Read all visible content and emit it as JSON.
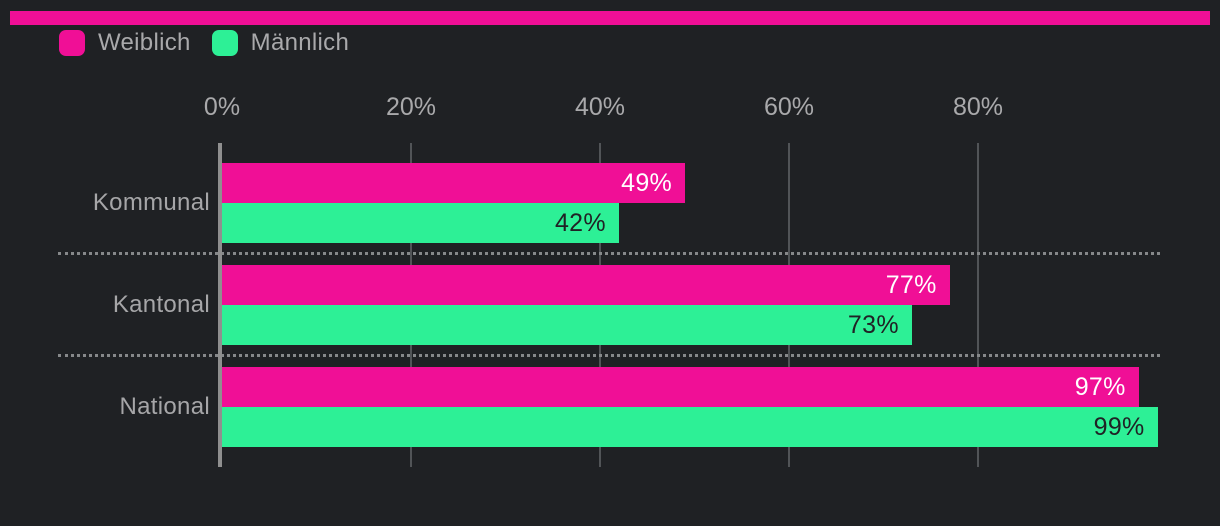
{
  "page": {
    "background": "#1f2124",
    "accent_color": "#f00f96",
    "text_color": "#a9a9ab"
  },
  "legend": {
    "items": [
      {
        "label": "Weiblich",
        "color": "#f00f96"
      },
      {
        "label": "Männlich",
        "color": "#2df096"
      }
    ]
  },
  "chart_data": {
    "type": "bar",
    "orientation": "horizontal",
    "title": "",
    "xlabel": "",
    "ylabel": "",
    "categories": [
      "Kommunal",
      "Kantonal",
      "National"
    ],
    "series": [
      {
        "name": "Weiblich",
        "color": "#f00f96",
        "values": [
          49,
          77,
          97
        ],
        "value_labels": [
          "49%",
          "77%",
          "97%"
        ],
        "label_color": "#ffffff"
      },
      {
        "name": "Männlich",
        "color": "#2df096",
        "values": [
          42,
          73,
          99
        ],
        "value_labels": [
          "42%",
          "73%",
          "99%"
        ],
        "label_color": "#202225"
      }
    ],
    "x_axis": {
      "min": 0,
      "max": 100,
      "ticks": [
        {
          "value": 0,
          "label": "0%"
        },
        {
          "value": 20,
          "label": "20%"
        },
        {
          "value": 40,
          "label": "40%"
        },
        {
          "value": 60,
          "label": "60%"
        },
        {
          "value": 80,
          "label": "80%"
        }
      ]
    },
    "grid": true,
    "legend_position": "top-left",
    "styles": {
      "grid_color": "#515457",
      "axis_color": "#8f8f8f",
      "separator_color": "#86888a",
      "tick_text_color": "#a9a9ab",
      "category_text_color": "#a6a6a8"
    }
  }
}
